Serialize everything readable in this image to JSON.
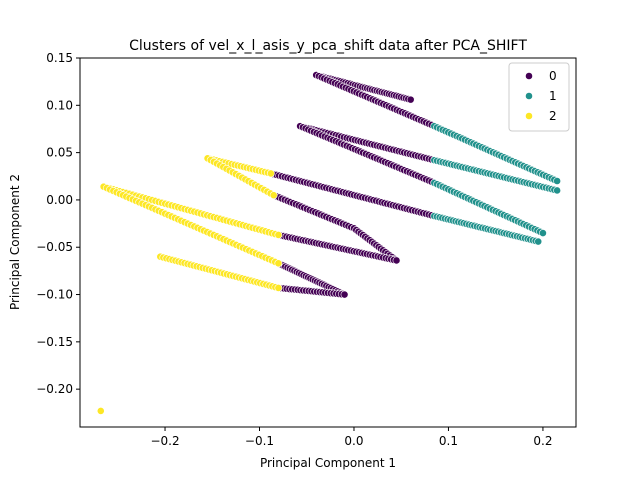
{
  "chart_data": {
    "type": "scatter",
    "title": "Clusters of vel_x_l_asis_y_pca_shift data after PCA_SHIFT",
    "xlabel": "Principal Component 1",
    "ylabel": "Principal Component 2",
    "xlim": [
      -0.29,
      0.235
    ],
    "ylim": [
      -0.24,
      0.15
    ],
    "xticks": [
      -0.2,
      -0.1,
      0.0,
      0.1,
      0.2
    ],
    "xtick_labels": [
      "−0.2",
      "−0.1",
      "0.0",
      "0.1",
      "0.2"
    ],
    "yticks": [
      -0.2,
      -0.15,
      -0.1,
      -0.05,
      0.0,
      0.05,
      0.1,
      0.15
    ],
    "ytick_labels": [
      "−0.20",
      "−0.15",
      "−0.10",
      "−0.05",
      "0.00",
      "0.05",
      "0.10",
      "0.15"
    ],
    "grid": false,
    "legend_position": "top-right",
    "colors": {
      "0": "#440154",
      "1": "#21918c",
      "2": "#fde725"
    },
    "series": [
      {
        "name": "0",
        "color": "#440154",
        "segments": [
          {
            "x_start": -0.04,
            "x_end": 0.06,
            "y_start": 0.132,
            "y_end": 0.106,
            "n": 40
          },
          {
            "x_start": -0.04,
            "x_end": 0.085,
            "y_start": 0.132,
            "y_end": 0.078,
            "n": 45
          },
          {
            "x_start": -0.057,
            "x_end": 0.085,
            "y_start": 0.078,
            "y_end": 0.042,
            "n": 50
          },
          {
            "x_start": -0.057,
            "x_end": 0.085,
            "y_start": 0.078,
            "y_end": 0.018,
            "n": 50
          },
          {
            "x_start": -0.088,
            "x_end": 0.085,
            "y_start": 0.028,
            "y_end": -0.017,
            "n": 60
          },
          {
            "x_start": -0.085,
            "x_end": 0.0,
            "y_start": 0.005,
            "y_end": -0.03,
            "n": 30
          },
          {
            "x_start": 0.0,
            "x_end": 0.045,
            "y_start": -0.03,
            "y_end": -0.064,
            "n": 20
          },
          {
            "x_start": -0.08,
            "x_end": 0.045,
            "y_start": -0.037,
            "y_end": -0.064,
            "n": 45
          },
          {
            "x_start": -0.08,
            "x_end": -0.01,
            "y_start": -0.067,
            "y_end": -0.1,
            "n": 30
          },
          {
            "x_start": -0.08,
            "x_end": -0.01,
            "y_start": -0.093,
            "y_end": -0.1,
            "n": 25
          }
        ]
      },
      {
        "name": "1",
        "color": "#21918c",
        "segments": [
          {
            "x_start": 0.085,
            "x_end": 0.215,
            "y_start": 0.078,
            "y_end": 0.02,
            "n": 45
          },
          {
            "x_start": 0.085,
            "x_end": 0.215,
            "y_start": 0.042,
            "y_end": 0.01,
            "n": 45
          },
          {
            "x_start": 0.085,
            "x_end": 0.2,
            "y_start": 0.018,
            "y_end": -0.035,
            "n": 40
          },
          {
            "x_start": 0.085,
            "x_end": 0.195,
            "y_start": -0.017,
            "y_end": -0.044,
            "n": 40
          }
        ]
      },
      {
        "name": "2",
        "color": "#fde725",
        "segments": [
          {
            "x_start": -0.155,
            "x_end": -0.088,
            "y_start": 0.044,
            "y_end": 0.028,
            "n": 22
          },
          {
            "x_start": -0.155,
            "x_end": -0.085,
            "y_start": 0.044,
            "y_end": 0.005,
            "n": 22
          },
          {
            "x_start": -0.265,
            "x_end": -0.08,
            "y_start": 0.014,
            "y_end": -0.037,
            "n": 55
          },
          {
            "x_start": -0.265,
            "x_end": -0.08,
            "y_start": 0.014,
            "y_end": -0.067,
            "n": 55
          },
          {
            "x_start": -0.205,
            "x_end": -0.08,
            "y_start": -0.06,
            "y_end": -0.093,
            "n": 40
          }
        ],
        "points": [
          {
            "x": -0.268,
            "y": -0.223
          }
        ]
      }
    ]
  }
}
